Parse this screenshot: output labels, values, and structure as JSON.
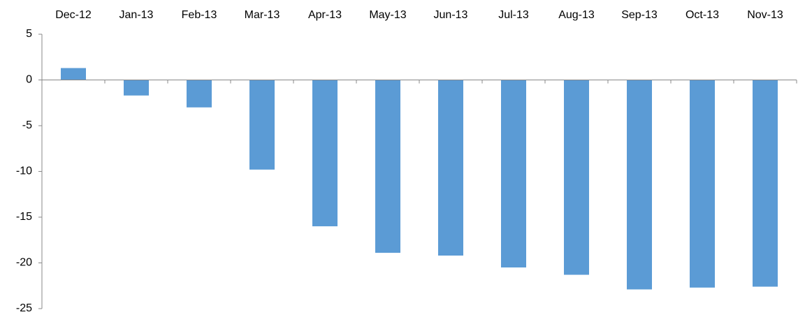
{
  "chart_data": {
    "type": "bar",
    "categories": [
      "Dec-12",
      "Jan-13",
      "Feb-13",
      "Mar-13",
      "Apr-13",
      "May-13",
      "Jun-13",
      "Jul-13",
      "Aug-13",
      "Sep-13",
      "Oct-13",
      "Nov-13"
    ],
    "values": [
      1.3,
      -1.7,
      -3.0,
      -9.8,
      -16.0,
      -18.9,
      -19.2,
      -20.5,
      -21.3,
      -22.9,
      -22.7,
      -22.6
    ],
    "color": "#5b9bd5",
    "ylim": [
      -25,
      5
    ],
    "yticks": [
      -25,
      -20,
      -15,
      -10,
      -5,
      0,
      5
    ],
    "grid": false
  }
}
